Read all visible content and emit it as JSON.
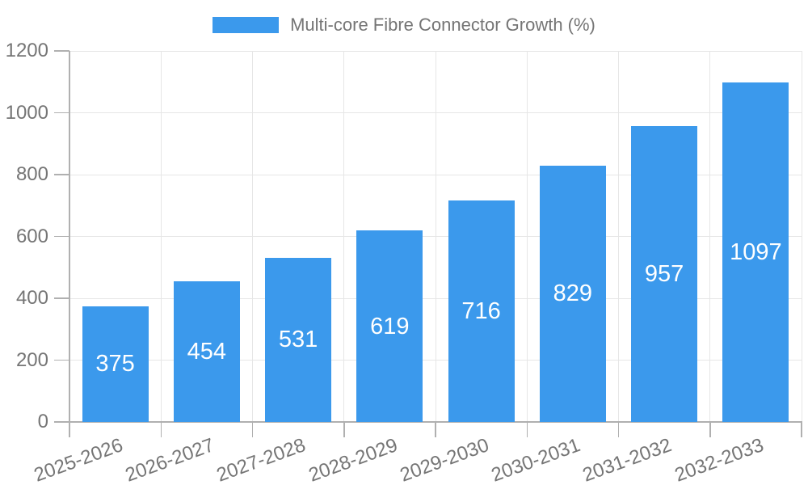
{
  "legend": {
    "label": "Multi-core Fibre Connector Growth (%)",
    "swatch_color": "#3B99EC"
  },
  "chart_data": {
    "type": "bar",
    "title": "Multi-core Fibre Connector Growth (%)",
    "categories": [
      "2025-2026",
      "2026-2027",
      "2027-2028",
      "2028-2029",
      "2029-2030",
      "2030-2031",
      "2031-2032",
      "2032-2033"
    ],
    "values": [
      375,
      454,
      531,
      619,
      716,
      829,
      957,
      1097
    ],
    "value_labels": [
      "375",
      "454",
      "531",
      "619",
      "716",
      "829",
      "957",
      "1097"
    ],
    "xlabel": "",
    "ylabel": "",
    "ylim": [
      0,
      1200
    ],
    "y_ticks": [
      0,
      200,
      400,
      600,
      800,
      1000,
      1200
    ],
    "grid": true,
    "legend_position": "top",
    "bar_color": "#3B99EC",
    "value_label_color": "#ffffff",
    "axis_text_color": "#757575",
    "grid_color": "#e6e6e6",
    "axis_line_color": "#b0b0b0",
    "x_tick_rotation_deg": -20
  }
}
